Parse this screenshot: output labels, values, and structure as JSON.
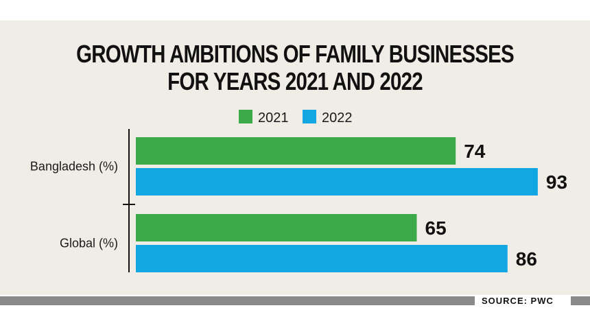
{
  "chart_data": {
    "type": "bar",
    "orientation": "horizontal",
    "title_lines": [
      "GROWTH AMBITIONS OF FAMILY BUSINESSES",
      "FOR YEARS 2021 AND 2022"
    ],
    "categories": [
      "Bangladesh (%)",
      "Global (%)"
    ],
    "series": [
      {
        "name": "2021",
        "values": [
          74,
          65
        ],
        "color": "#3daa4a"
      },
      {
        "name": "2022",
        "values": [
          93,
          86
        ],
        "color": "#12a7e2"
      }
    ],
    "xlim": [
      0,
      100
    ],
    "grid": false,
    "legend_position": "top-center",
    "data_labels": true
  },
  "source": "SOURCE: PWC",
  "colors": {
    "panel_background": "#f0ede6",
    "footer_bar": "#8a8a8a",
    "text": "#111111"
  }
}
